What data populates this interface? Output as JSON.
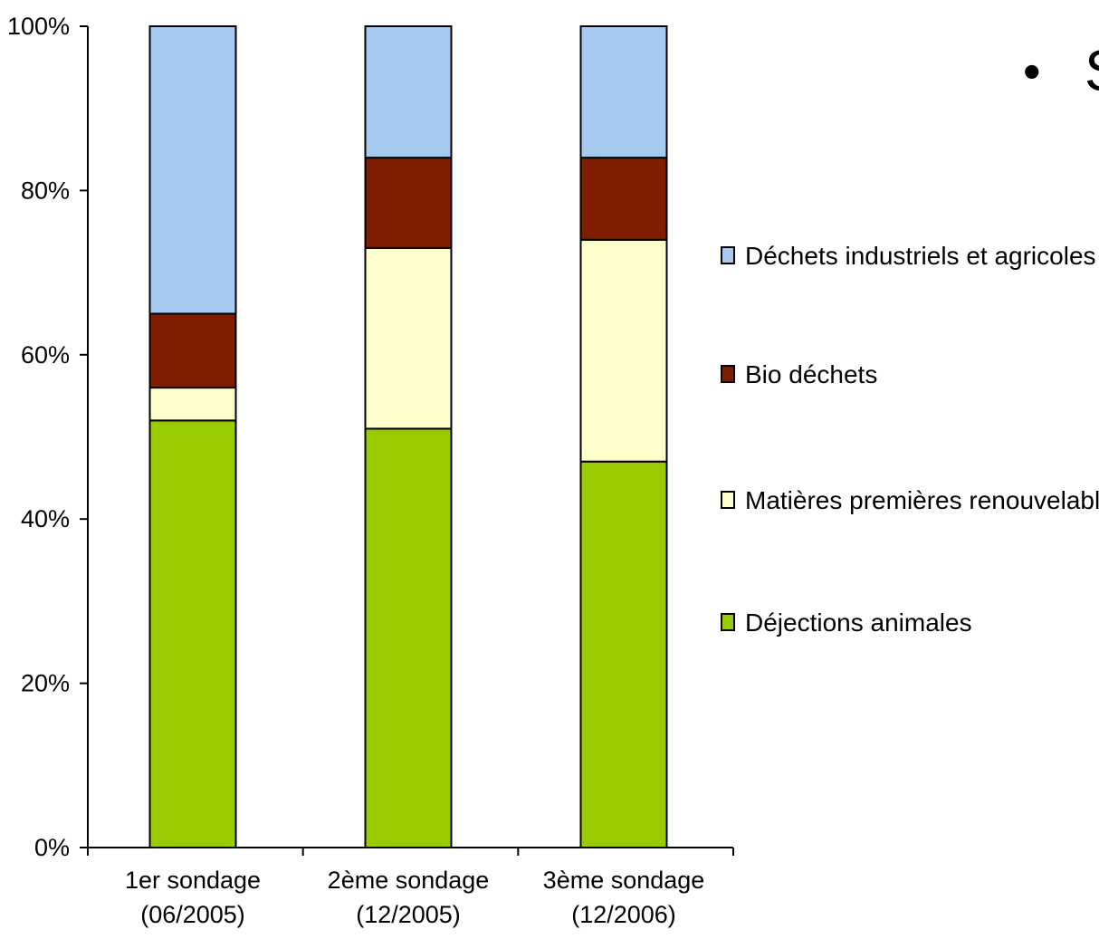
{
  "chart_data": {
    "type": "bar",
    "stacked": true,
    "categories": [
      [
        "1er sondage",
        "(06/2005)"
      ],
      [
        "2ème sondage",
        "(12/2005)"
      ],
      [
        "3ème sondage",
        "(12/2006)"
      ]
    ],
    "series": [
      {
        "name": "Déjections animales",
        "color": "#99cc00",
        "values": [
          52,
          51,
          47
        ]
      },
      {
        "name": "Matières premières renouvelables",
        "color": "#ffffcc",
        "values": [
          4,
          22,
          27
        ]
      },
      {
        "name": "Bio déchets",
        "color": "#7f1d00",
        "values": [
          9,
          11,
          10
        ]
      },
      {
        "name": "Déchets industriels et agricoles",
        "color": "#a6caf0",
        "values": [
          35,
          16,
          16
        ]
      }
    ],
    "ylim": [
      0,
      100
    ],
    "yticks": [
      "0%",
      "20%",
      "40%",
      "60%",
      "80%",
      "100%"
    ],
    "legend_order": [
      "Déchets industriels et agricoles",
      "Bio déchets",
      "Matières premières renouvelables",
      "Déjections animales"
    ],
    "legend_position": "right",
    "grid": false
  },
  "slide": {
    "bullet": "•",
    "partial_text": "S"
  }
}
